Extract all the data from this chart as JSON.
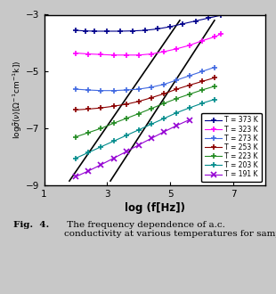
{
  "xlabel": "log (f[Hz])",
  "xlim": [
    1,
    8
  ],
  "ylim": [
    -9,
    -3
  ],
  "xticks": [
    1,
    3,
    5,
    7
  ],
  "yticks": [
    -9,
    -7,
    -5,
    -3
  ],
  "background": "#c8c8c8",
  "plot_bg": "#ffffff",
  "outer_box_bg": "#ffffff",
  "series": [
    {
      "label": "T = 373 K",
      "color": "#00008B",
      "marker": "+",
      "x": [
        2.0,
        2.3,
        2.6,
        3.0,
        3.4,
        3.8,
        4.2,
        4.6,
        5.0,
        5.4,
        5.8,
        6.2,
        6.6
      ],
      "y": [
        -3.55,
        -3.57,
        -3.58,
        -3.58,
        -3.58,
        -3.57,
        -3.55,
        -3.5,
        -3.42,
        -3.32,
        -3.22,
        -3.12,
        -3.02
      ]
    },
    {
      "label": "T = 323 K",
      "color": "#FF00FF",
      "marker": "+",
      "x": [
        2.0,
        2.4,
        2.8,
        3.2,
        3.6,
        4.0,
        4.4,
        4.8,
        5.2,
        5.6,
        6.0,
        6.4,
        6.6
      ],
      "y": [
        -4.35,
        -4.38,
        -4.4,
        -4.42,
        -4.42,
        -4.42,
        -4.38,
        -4.3,
        -4.2,
        -4.08,
        -3.92,
        -3.78,
        -3.68
      ]
    },
    {
      "label": "T = 273 K",
      "color": "#4169E1",
      "marker": "+",
      "x": [
        2.0,
        2.4,
        2.8,
        3.2,
        3.6,
        4.0,
        4.4,
        4.8,
        5.2,
        5.6,
        6.0,
        6.4
      ],
      "y": [
        -5.62,
        -5.65,
        -5.67,
        -5.67,
        -5.65,
        -5.62,
        -5.55,
        -5.45,
        -5.3,
        -5.15,
        -5.0,
        -4.85
      ]
    },
    {
      "label": "T = 253 K",
      "color": "#8B0000",
      "marker": "+",
      "x": [
        2.0,
        2.4,
        2.8,
        3.2,
        3.6,
        4.0,
        4.4,
        4.8,
        5.2,
        5.6,
        6.0,
        6.4
      ],
      "y": [
        -6.35,
        -6.32,
        -6.28,
        -6.22,
        -6.15,
        -6.05,
        -5.92,
        -5.78,
        -5.62,
        -5.48,
        -5.35,
        -5.22
      ]
    },
    {
      "label": "T = 223 K",
      "color": "#228B22",
      "marker": "+",
      "x": [
        2.0,
        2.4,
        2.8,
        3.2,
        3.6,
        4.0,
        4.4,
        4.8,
        5.2,
        5.6,
        6.0,
        6.4
      ],
      "y": [
        -7.3,
        -7.15,
        -7.0,
        -6.82,
        -6.65,
        -6.48,
        -6.3,
        -6.12,
        -5.95,
        -5.8,
        -5.65,
        -5.52
      ]
    },
    {
      "label": "T = 203 K",
      "color": "#008B8B",
      "marker": "+",
      "x": [
        2.0,
        2.4,
        2.8,
        3.2,
        3.6,
        4.0,
        4.4,
        4.8,
        5.2,
        5.6,
        6.0,
        6.4
      ],
      "y": [
        -8.05,
        -7.85,
        -7.65,
        -7.45,
        -7.25,
        -7.05,
        -6.85,
        -6.65,
        -6.45,
        -6.28,
        -6.12,
        -5.98
      ]
    },
    {
      "label": "T = 191 K",
      "color": "#9400D3",
      "marker": "x",
      "x": [
        2.0,
        2.4,
        2.8,
        3.2,
        3.6,
        4.0,
        4.4,
        4.8,
        5.2,
        5.6
      ],
      "y": [
        -8.7,
        -8.5,
        -8.28,
        -8.05,
        -7.82,
        -7.58,
        -7.35,
        -7.12,
        -6.9,
        -6.7
      ]
    }
  ],
  "diagonal_lines": [
    {
      "x": [
        1.8,
        5.3
      ],
      "y": [
        -8.85,
        -3.2
      ]
    },
    {
      "x": [
        3.1,
        6.4
      ],
      "y": [
        -8.85,
        -3.2
      ]
    }
  ],
  "caption_bold": "Fig.  4.",
  "caption_normal": "  The frequency dependence of a.c.\nconductivity at various temperatures for sample IPM"
}
